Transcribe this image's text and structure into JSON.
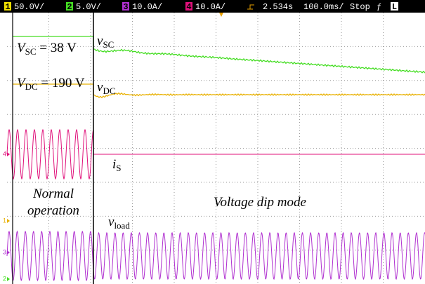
{
  "header": {
    "channels": [
      {
        "num": "1",
        "scale": "50.0V/"
      },
      {
        "num": "2",
        "scale": "5.0V/"
      },
      {
        "num": "3",
        "scale": "10.0A/"
      },
      {
        "num": "4",
        "scale": "10.0A/"
      }
    ],
    "delay": "2.534s",
    "timebase": "100.0ms/",
    "status": "Stop",
    "edge": "ƒ",
    "mode": "L"
  },
  "markers": [
    "4",
    "1",
    "3",
    "2"
  ],
  "labels": {
    "vsc_value": {
      "main": "V",
      "sub": "SC",
      "rest": " = 38 V"
    },
    "vdc_value": {
      "main": "V",
      "sub": "DC",
      "rest": " = 190 V"
    },
    "vsc": {
      "main": "v",
      "sub": "SC"
    },
    "vdc": {
      "main": "v",
      "sub": "DC"
    },
    "is": {
      "main": "i",
      "sub": "S"
    },
    "vload": {
      "main": "v",
      "sub": "load"
    },
    "normal": [
      "Normal",
      "operation"
    ],
    "dip": "Voltage dip mode"
  }
}
